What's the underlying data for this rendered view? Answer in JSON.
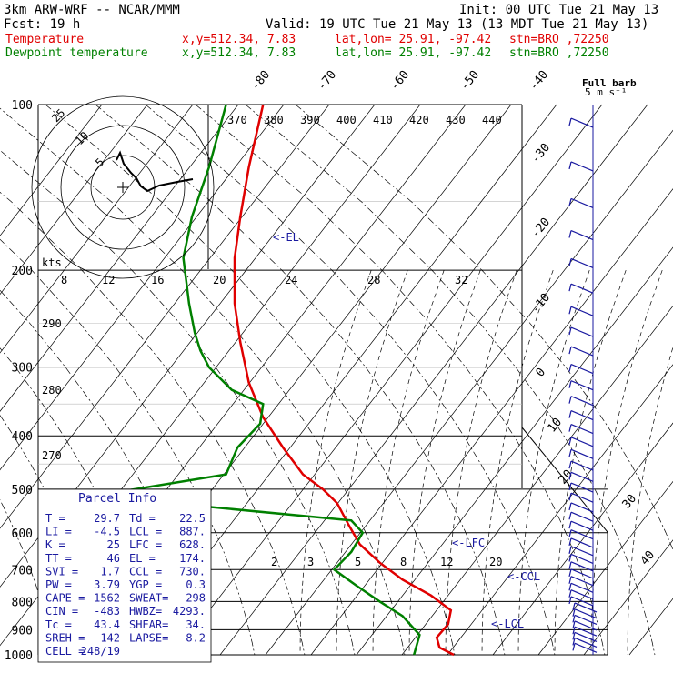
{
  "header": {
    "model": "3km ARW-WRF -- NCAR/MMM",
    "init": "Init: 00 UTC Tue 21 May 13",
    "fcst": "Fcst:    19 h",
    "valid": "Valid: 19 UTC Tue 21 May 13 (13 MDT Tue 21 May 13)"
  },
  "legend": [
    {
      "label": "Temperature",
      "coords": "x,y=512.34,  7.83",
      "latlon": "lat,lon= 25.91, -97.42",
      "stn": "stn=BRO ,72250",
      "color": "#e00000"
    },
    {
      "label": "Dewpoint temperature",
      "coords": "x,y=512.34,  7.83",
      "latlon": "lat,lon= 25.91, -97.42",
      "stn": "stn=BRO ,72250",
      "color": "#008000"
    }
  ],
  "barb_legend": {
    "line1": "Full barb",
    "line2": "5 m s⁻¹"
  },
  "hodograph": {
    "units": "kts",
    "rings": [
      "5",
      "10",
      "25"
    ]
  },
  "chart_data": {
    "type": "line",
    "title": "",
    "skewt": {
      "pressure_levels": [
        100,
        200,
        300,
        400,
        500,
        600,
        700,
        800,
        900,
        1000
      ],
      "temperature_ticks_top": [
        "-80",
        "-70",
        "-60",
        "-50",
        "-40"
      ],
      "temperature_ticks_right": [
        "-30",
        "-20",
        "-10",
        "0",
        "10",
        "20",
        "30",
        "40"
      ],
      "theta_labels": [
        "370",
        "380",
        "390",
        "400",
        "410",
        "420",
        "430",
        "440"
      ],
      "theta_left_labels": [
        "290",
        "280",
        "270"
      ],
      "mixing_ratio_labels": [
        "2",
        "3",
        "5",
        "8",
        "12",
        "20"
      ],
      "hodo_speed_labels": [
        "8",
        "12",
        "16",
        "20",
        "24",
        "28",
        "32"
      ]
    },
    "series": [
      {
        "name": "Temperature",
        "color": "#e00000",
        "x": [
          0.395,
          0.37,
          0.355,
          0.345,
          0.345,
          0.355,
          0.37,
          0.395,
          0.43,
          0.465,
          0.5,
          0.525,
          0.545,
          0.565,
          0.6,
          0.64,
          0.69,
          0.725,
          0.72,
          0.7,
          0.705,
          0.73
        ],
        "p": [
          100,
          130,
          160,
          190,
          230,
          270,
          320,
          370,
          420,
          470,
          500,
          530,
          580,
          630,
          680,
          730,
          780,
          830,
          880,
          930,
          970,
          1000
        ]
      },
      {
        "name": "Dewpoint temperature",
        "color": "#008000",
        "x": [
          0.33,
          0.3,
          0.27,
          0.255,
          0.265,
          0.275,
          0.285,
          0.3,
          0.34,
          0.395,
          0.39,
          0.35,
          0.33,
          0.17,
          0.23,
          0.55,
          0.57,
          0.55,
          0.52,
          0.56,
          0.6,
          0.64,
          0.67,
          0.66
        ],
        "p": [
          100,
          130,
          160,
          190,
          230,
          260,
          280,
          300,
          330,
          350,
          380,
          420,
          470,
          500,
          530,
          570,
          600,
          650,
          700,
          750,
          800,
          850,
          920,
          1000
        ]
      }
    ],
    "annotations": [
      "<-EL",
      "<-LFC",
      "<-CCL",
      "<-LCL"
    ]
  },
  "indices": [
    {
      "l": "T   =",
      "lv": "29.7",
      "r": "Td  =",
      "rv": "22.5"
    },
    {
      "l": "LI  =",
      "lv": "-4.5",
      "r": "LCL =",
      "rv": "887."
    },
    {
      "l": "K   =",
      "lv": "25",
      "r": "LFC =",
      "rv": "628."
    },
    {
      "l": "TT  =",
      "lv": "46",
      "r": "EL  =",
      "rv": "174."
    },
    {
      "l": "SVI =",
      "lv": "1.7",
      "r": "CCL =",
      "rv": "730."
    },
    {
      "l": "PW  =",
      "lv": "3.79",
      "r": "YGP =",
      "rv": "0.3"
    },
    {
      "l": "CAPE =",
      "lv": "1562",
      "r": "SWEAT=",
      "rv": "298"
    },
    {
      "l": "CIN  =",
      "lv": "-483",
      "r": "HWBZ=",
      "rv": "4293."
    },
    {
      "l": "Tc   =",
      "lv": "43.4",
      "r": "SHEAR=",
      "rv": "34."
    },
    {
      "l": "SREH =",
      "lv": "142",
      "r": "LAPSE=",
      "rv": "8.2"
    },
    {
      "l": "CELL =",
      "lv": "248/19",
      "r": "",
      "rv": ""
    }
  ],
  "parcel_title": "Parcel Info"
}
